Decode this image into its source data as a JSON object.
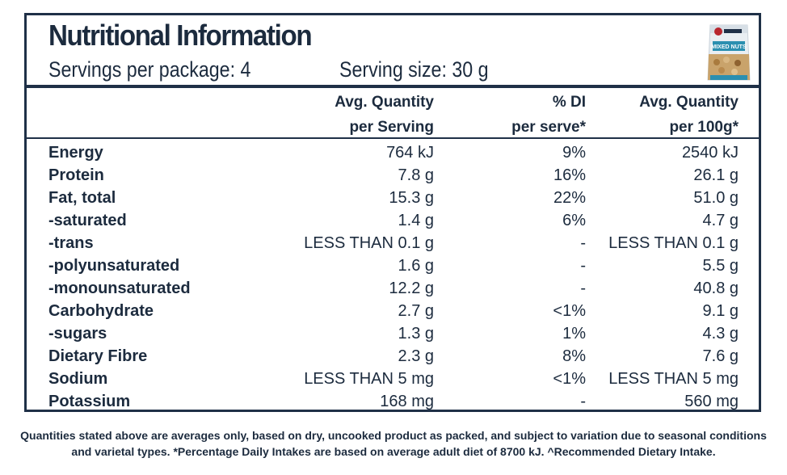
{
  "panel": {
    "title": "Nutritional Information",
    "servings_per_package": "Servings per package: 4",
    "serving_size": "Serving size: 30 g"
  },
  "product_image": {
    "icon": "mixed-nuts-package-icon",
    "brand_color": "#2b8fb0",
    "package_text": "MIXED NUTS"
  },
  "headers": {
    "col1_line1": "Avg. Quantity",
    "col1_line2": "per Serving",
    "col2_line1": "% DI",
    "col2_line2": "per serve*",
    "col3_line1": "Avg. Quantity",
    "col3_line2": "per 100g*"
  },
  "rows": [
    {
      "name": "Energy",
      "per_serving": "764 kJ",
      "di": "9%",
      "per_100g": "2540 kJ"
    },
    {
      "name": "Protein",
      "per_serving": "7.8 g",
      "di": "16%",
      "per_100g": "26.1 g"
    },
    {
      "name": "Fat, total",
      "per_serving": "15.3 g",
      "di": "22%",
      "per_100g": "51.0 g"
    },
    {
      "name": "-saturated",
      "per_serving": "1.4 g",
      "di": "6%",
      "per_100g": "4.7 g"
    },
    {
      "name": "-trans",
      "per_serving": "LESS THAN 0.1 g",
      "di": "-",
      "per_100g": "LESS THAN 0.1 g"
    },
    {
      "name": "-polyunsaturated",
      "per_serving": "1.6 g",
      "di": "-",
      "per_100g": "5.5 g"
    },
    {
      "name": "-monounsaturated",
      "per_serving": "12.2 g",
      "di": "-",
      "per_100g": "40.8 g"
    },
    {
      "name": "Carbohydrate",
      "per_serving": "2.7 g",
      "di": "<1%",
      "per_100g": "9.1 g"
    },
    {
      "name": "-sugars",
      "per_serving": "1.3 g",
      "di": "1%",
      "per_100g": "4.3 g"
    },
    {
      "name": "Dietary Fibre",
      "per_serving": "2.3 g",
      "di": "8%",
      "per_100g": "7.6 g"
    },
    {
      "name": "Sodium",
      "per_serving": "LESS THAN 5 mg",
      "di": "<1%",
      "per_100g": "LESS THAN 5 mg"
    },
    {
      "name": "Potassium",
      "per_serving": "168 mg",
      "di": "-",
      "per_100g": "560 mg"
    }
  ],
  "footnote": {
    "line1": "Quantities stated above are averages only, based on dry, uncooked product as packed, and subject to variation due to seasonal conditions",
    "line2": "and varietal types. *Percentage Daily Intakes are based on average adult diet of 8700 kJ. ^Recommended Dietary Intake."
  }
}
